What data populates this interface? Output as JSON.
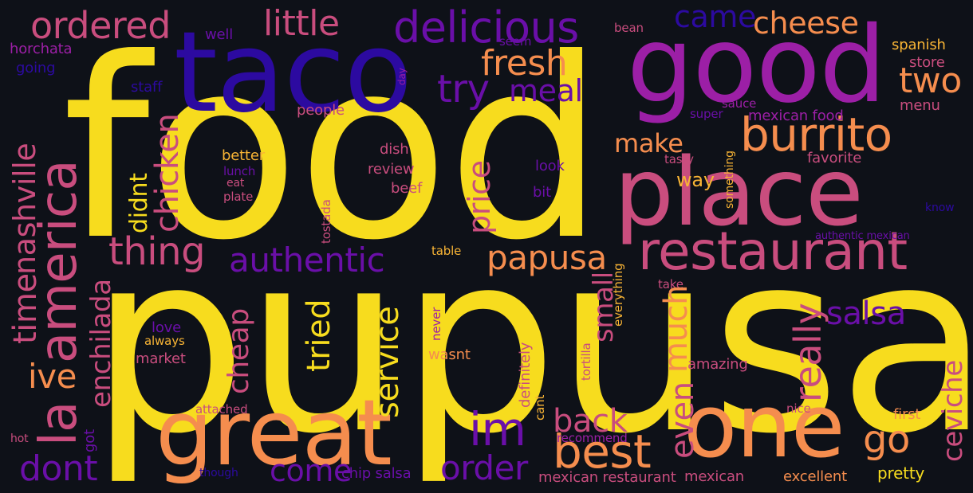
{
  "palette": {
    "background": "#0e1118",
    "yellow": "#f7dc1e",
    "orange": "#f58d4e",
    "pink": "#c94d7e",
    "magenta": "#9c1fa6",
    "purple": "#6a0fa8",
    "indigo": "#2c0aa0",
    "amber": "#f8b435"
  },
  "words": [
    {
      "id": "food",
      "text": "food"
    },
    {
      "id": "pupusa-big",
      "text": "pupusa"
    },
    {
      "id": "taco",
      "text": "taco"
    },
    {
      "id": "good",
      "text": "good"
    },
    {
      "id": "place",
      "text": "place"
    },
    {
      "id": "great",
      "text": "great"
    },
    {
      "id": "one",
      "text": "one"
    },
    {
      "id": "restaurant",
      "text": "restaurant"
    },
    {
      "id": "burrito",
      "text": "burrito"
    },
    {
      "id": "america",
      "text": "america"
    },
    {
      "id": "delicious",
      "text": "delicious"
    },
    {
      "id": "ordered",
      "text": "ordered"
    },
    {
      "id": "little",
      "text": "little"
    },
    {
      "id": "came",
      "text": "came"
    },
    {
      "id": "cheese",
      "text": "cheese"
    },
    {
      "id": "fresh",
      "text": "fresh"
    },
    {
      "id": "try",
      "text": "try"
    },
    {
      "id": "meal",
      "text": "meal"
    },
    {
      "id": "two",
      "text": "two"
    },
    {
      "id": "nashville",
      "text": "nashville"
    },
    {
      "id": "la",
      "text": "la"
    },
    {
      "id": "time",
      "text": "time"
    },
    {
      "id": "chicken",
      "text": "chicken"
    },
    {
      "id": "thing",
      "text": "thing"
    },
    {
      "id": "authentic",
      "text": "authentic"
    },
    {
      "id": "papusa",
      "text": "papusa"
    },
    {
      "id": "im",
      "text": "im"
    },
    {
      "id": "best",
      "text": "best"
    },
    {
      "id": "go",
      "text": "go"
    },
    {
      "id": "back",
      "text": "back"
    },
    {
      "id": "order",
      "text": "order"
    },
    {
      "id": "come",
      "text": "come"
    },
    {
      "id": "dont",
      "text": "dont"
    },
    {
      "id": "ive",
      "text": "ive"
    },
    {
      "id": "enchilada",
      "text": "enchilada"
    },
    {
      "id": "make",
      "text": "make"
    },
    {
      "id": "didnt",
      "text": "didnt"
    },
    {
      "id": "price",
      "text": "price"
    },
    {
      "id": "tried",
      "text": "tried"
    },
    {
      "id": "cheap",
      "text": "cheap"
    },
    {
      "id": "service",
      "text": "service"
    },
    {
      "id": "small",
      "text": "small"
    },
    {
      "id": "much",
      "text": "much"
    },
    {
      "id": "even",
      "text": "even"
    },
    {
      "id": "really",
      "text": "really"
    },
    {
      "id": "salsa",
      "text": "salsa"
    },
    {
      "id": "ceviche",
      "text": "ceviche"
    },
    {
      "id": "way",
      "text": "way"
    },
    {
      "id": "horchata",
      "text": "horchata"
    },
    {
      "id": "going",
      "text": "going"
    },
    {
      "id": "well",
      "text": "well"
    },
    {
      "id": "staff",
      "text": "staff"
    },
    {
      "id": "people",
      "text": "people"
    },
    {
      "id": "seem",
      "text": "seem"
    },
    {
      "id": "day",
      "text": "day"
    },
    {
      "id": "bean",
      "text": "bean"
    },
    {
      "id": "spanish",
      "text": "spanish"
    },
    {
      "id": "store",
      "text": "store"
    },
    {
      "id": "menu",
      "text": "menu"
    },
    {
      "id": "sauce",
      "text": "sauce"
    },
    {
      "id": "super",
      "text": "super"
    },
    {
      "id": "mexican-food",
      "text": "mexican food"
    },
    {
      "id": "tasty",
      "text": "tasty"
    },
    {
      "id": "something",
      "text": "something"
    },
    {
      "id": "favorite",
      "text": "favorite"
    },
    {
      "id": "know",
      "text": "know"
    },
    {
      "id": "authentic-mexican",
      "text": "authentic mexican"
    },
    {
      "id": "better",
      "text": "better"
    },
    {
      "id": "lunch",
      "text": "lunch"
    },
    {
      "id": "eat",
      "text": "eat"
    },
    {
      "id": "plate",
      "text": "plate"
    },
    {
      "id": "dish",
      "text": "dish"
    },
    {
      "id": "review",
      "text": "review"
    },
    {
      "id": "beef",
      "text": "beef"
    },
    {
      "id": "look",
      "text": "look"
    },
    {
      "id": "bit",
      "text": "bit"
    },
    {
      "id": "tostada",
      "text": "tostada"
    },
    {
      "id": "table",
      "text": "table"
    },
    {
      "id": "everything",
      "text": "everything"
    },
    {
      "id": "take",
      "text": "take"
    },
    {
      "id": "love",
      "text": "love"
    },
    {
      "id": "always",
      "text": "always"
    },
    {
      "id": "market",
      "text": "market"
    },
    {
      "id": "never",
      "text": "never"
    },
    {
      "id": "wasnt",
      "text": "wasnt"
    },
    {
      "id": "definitely",
      "text": "definitely"
    },
    {
      "id": "tortilla",
      "text": "tortilla"
    },
    {
      "id": "amazing",
      "text": "amazing"
    },
    {
      "id": "cant",
      "text": "cant"
    },
    {
      "id": "nice",
      "text": "nice"
    },
    {
      "id": "first",
      "text": "first"
    },
    {
      "id": "attached",
      "text": "attached"
    },
    {
      "id": "got",
      "text": "got"
    },
    {
      "id": "hot",
      "text": "hot"
    },
    {
      "id": "though",
      "text": "though"
    },
    {
      "id": "chip-salsa",
      "text": "chip salsa"
    },
    {
      "id": "recommend",
      "text": "recommend"
    },
    {
      "id": "mexican-restaurant",
      "text": "mexican restaurant"
    },
    {
      "id": "mexican",
      "text": "mexican"
    },
    {
      "id": "excellent",
      "text": "excellent"
    },
    {
      "id": "pretty",
      "text": "pretty"
    }
  ]
}
